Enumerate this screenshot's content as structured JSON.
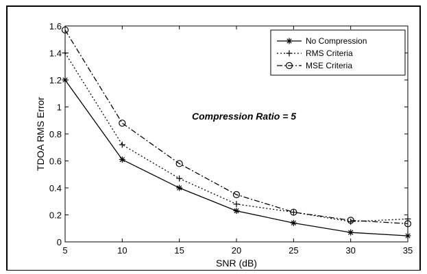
{
  "chart_data": {
    "type": "line",
    "title": "",
    "xlabel": "SNR (dB)",
    "ylabel": "TDOA RMS Error",
    "annotation": "Compression Ratio = 5",
    "xlim": [
      5,
      35
    ],
    "ylim": [
      0,
      1.6
    ],
    "x": [
      5,
      10,
      15,
      20,
      25,
      30,
      35
    ],
    "xticks": [
      "5",
      "10",
      "15",
      "20",
      "25",
      "30",
      "35"
    ],
    "yticks": [
      "0",
      "0.2",
      "0.4",
      "0.6",
      "0.8",
      "1",
      "1.2",
      "1.4",
      "1.6"
    ],
    "grid": false,
    "legend_position": "top-right",
    "series": [
      {
        "name": "No Compression",
        "values": [
          1.2,
          0.61,
          0.4,
          0.23,
          0.14,
          0.07,
          0.045
        ],
        "marker": "asterisk",
        "line": "solid",
        "color": "#000000"
      },
      {
        "name": "RMS Criteria",
        "values": [
          1.4,
          0.72,
          0.47,
          0.28,
          0.22,
          0.15,
          0.17
        ],
        "marker": "plus",
        "line": "dotted",
        "color": "#000000"
      },
      {
        "name": "MSE Criteria",
        "values": [
          1.57,
          0.88,
          0.58,
          0.35,
          0.22,
          0.16,
          0.135
        ],
        "marker": "circle",
        "line": "dashdot",
        "color": "#000000"
      }
    ]
  }
}
